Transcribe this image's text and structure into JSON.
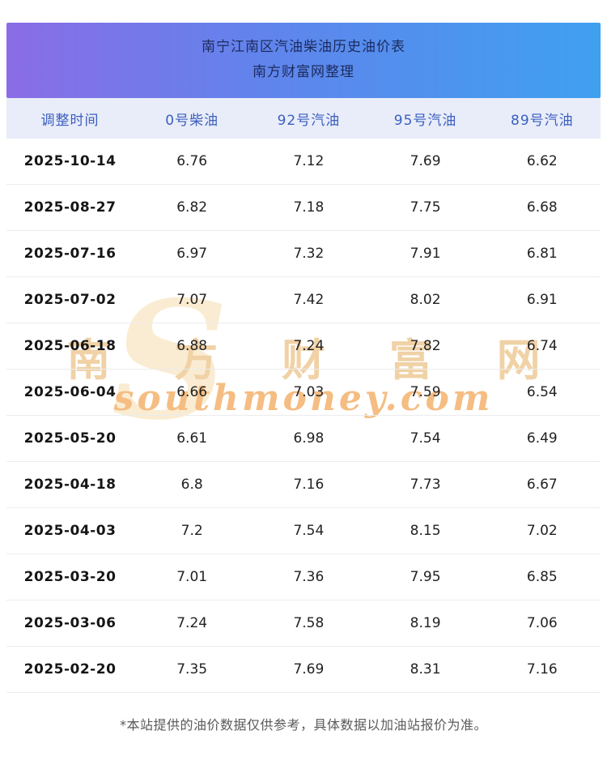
{
  "header": {
    "title_line1": "南宁江南区汽油柴油历史油价表",
    "title_line2": "南方财富网整理"
  },
  "chart_data": {
    "type": "table",
    "title": "南宁江南区汽油柴油历史油价表",
    "columns": [
      "调整时间",
      "0号柴油",
      "92号汽油",
      "95号汽油",
      "89号汽油"
    ],
    "rows": [
      [
        "2025-10-14",
        "6.76",
        "7.12",
        "7.69",
        "6.62"
      ],
      [
        "2025-08-27",
        "6.82",
        "7.18",
        "7.75",
        "6.68"
      ],
      [
        "2025-07-16",
        "6.97",
        "7.32",
        "7.91",
        "6.81"
      ],
      [
        "2025-07-02",
        "7.07",
        "7.42",
        "8.02",
        "6.91"
      ],
      [
        "2025-06-18",
        "6.88",
        "7.24",
        "7.82",
        "6.74"
      ],
      [
        "2025-06-04",
        "6.66",
        "7.03",
        "7.59",
        "6.54"
      ],
      [
        "2025-05-20",
        "6.61",
        "6.98",
        "7.54",
        "6.49"
      ],
      [
        "2025-04-18",
        "6.8",
        "7.16",
        "7.73",
        "6.67"
      ],
      [
        "2025-04-03",
        "7.2",
        "7.54",
        "8.15",
        "7.02"
      ],
      [
        "2025-03-20",
        "7.01",
        "7.36",
        "7.95",
        "6.85"
      ],
      [
        "2025-03-06",
        "7.24",
        "7.58",
        "8.19",
        "7.06"
      ],
      [
        "2025-02-20",
        "7.35",
        "7.69",
        "8.31",
        "7.16"
      ]
    ]
  },
  "watermark": {
    "logo_letter": "S",
    "line1": "南 方 财 富 网",
    "line2": "southmoney.com"
  },
  "footer": {
    "note": "*本站提供的油价数据仅供参考，具体数据以加油站报价为准。"
  },
  "colors": {
    "banner_gradient_left": "#8a6ce6",
    "banner_gradient_right": "#3fa0f0",
    "banner_text": "#1c2b5e",
    "header_row_bg": "#e9edf9",
    "header_row_text": "#3b5fc0",
    "row_divider": "#ececec",
    "watermark_tan": "#f0d2a6",
    "watermark_orange": "#f5bd82",
    "footer_text": "#595959"
  }
}
